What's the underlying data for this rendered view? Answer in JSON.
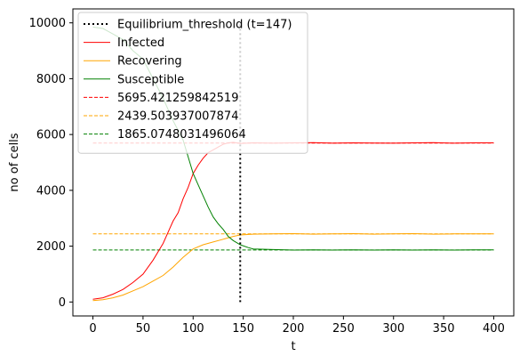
{
  "chart_data": {
    "type": "line",
    "title": "",
    "xlabel": "t",
    "ylabel": "no of cells",
    "xlim": [
      -20,
      420
    ],
    "ylim": [
      -500,
      10500
    ],
    "xticks": [
      0,
      50,
      100,
      150,
      200,
      250,
      300,
      350,
      400
    ],
    "yticks": [
      0,
      2000,
      4000,
      6000,
      8000,
      10000
    ],
    "xtick_labels": [
      "0",
      "50",
      "100",
      "150",
      "200",
      "250",
      "300",
      "350",
      "400"
    ],
    "ytick_labels": [
      "0",
      "2000",
      "4000",
      "6000",
      "8000",
      "10000"
    ],
    "grid": false,
    "legend_position": "top-left",
    "legend": [
      {
        "label": "Equilibrium_threshold (t=147)",
        "color": "#000000",
        "style": "dotted"
      },
      {
        "label": "Infected",
        "color": "#ff0000",
        "style": "solid"
      },
      {
        "label": "Recovering",
        "color": "#ffa500",
        "style": "solid"
      },
      {
        "label": "Susceptible",
        "color": "#008000",
        "style": "solid"
      },
      {
        "label": "5695.421259842519",
        "color": "#ff0000",
        "style": "dashed"
      },
      {
        "label": "2439.503937007874",
        "color": "#ffa500",
        "style": "dashed"
      },
      {
        "label": "1865.0748031496064",
        "color": "#008000",
        "style": "dashed"
      }
    ],
    "threshold": {
      "x": 147,
      "y_range": [
        0,
        10000
      ],
      "color": "#000000"
    },
    "equilibria": [
      {
        "value": 5695.421259842519,
        "x_range": [
          0,
          400
        ],
        "color": "#ff0000"
      },
      {
        "value": 2439.503937007874,
        "x_range": [
          0,
          400
        ],
        "color": "#ffa500"
      },
      {
        "value": 1865.0748031496064,
        "x_range": [
          0,
          400
        ],
        "color": "#008000"
      }
    ],
    "series": [
      {
        "name": "Infected",
        "color": "#ff0000",
        "x": [
          0,
          10,
          20,
          30,
          40,
          50,
          60,
          70,
          75,
          80,
          85,
          90,
          95,
          100,
          105,
          110,
          115,
          120,
          125,
          130,
          135,
          140,
          147,
          160,
          180,
          200,
          220,
          240,
          260,
          280,
          300,
          320,
          340,
          360,
          380,
          400
        ],
        "y": [
          100,
          150,
          280,
          450,
          700,
          1000,
          1500,
          2100,
          2500,
          2900,
          3200,
          3700,
          4100,
          4600,
          4900,
          5150,
          5350,
          5450,
          5550,
          5650,
          5700,
          5720,
          5680,
          5700,
          5690,
          5700,
          5710,
          5690,
          5700,
          5695,
          5690,
          5700,
          5710,
          5690,
          5700,
          5700
        ]
      },
      {
        "name": "Recovering",
        "color": "#ffa500",
        "x": [
          0,
          10,
          20,
          30,
          40,
          50,
          60,
          70,
          80,
          90,
          100,
          110,
          120,
          130,
          140,
          147,
          160,
          180,
          200,
          220,
          240,
          260,
          280,
          300,
          320,
          340,
          360,
          380,
          400
        ],
        "y": [
          50,
          80,
          150,
          250,
          400,
          550,
          750,
          950,
          1250,
          1600,
          1900,
          2050,
          2150,
          2250,
          2350,
          2400,
          2430,
          2440,
          2450,
          2430,
          2440,
          2450,
          2430,
          2440,
          2450,
          2430,
          2440,
          2440,
          2440
        ]
      },
      {
        "name": "Susceptible",
        "color": "#008000",
        "x": [
          0,
          10,
          20,
          30,
          40,
          50,
          60,
          70,
          80,
          90,
          100,
          105,
          110,
          115,
          120,
          125,
          130,
          135,
          140,
          147,
          155,
          160,
          180,
          200,
          220,
          240,
          260,
          280,
          300,
          320,
          340,
          360,
          380,
          400
        ],
        "y": [
          9850,
          9800,
          9600,
          9400,
          9000,
          8700,
          8000,
          7300,
          6500,
          5800,
          4600,
          4200,
          3800,
          3400,
          3050,
          2800,
          2600,
          2350,
          2200,
          2050,
          1950,
          1900,
          1880,
          1860,
          1870,
          1860,
          1870,
          1860,
          1870,
          1860,
          1870,
          1860,
          1870,
          1865
        ]
      }
    ]
  }
}
